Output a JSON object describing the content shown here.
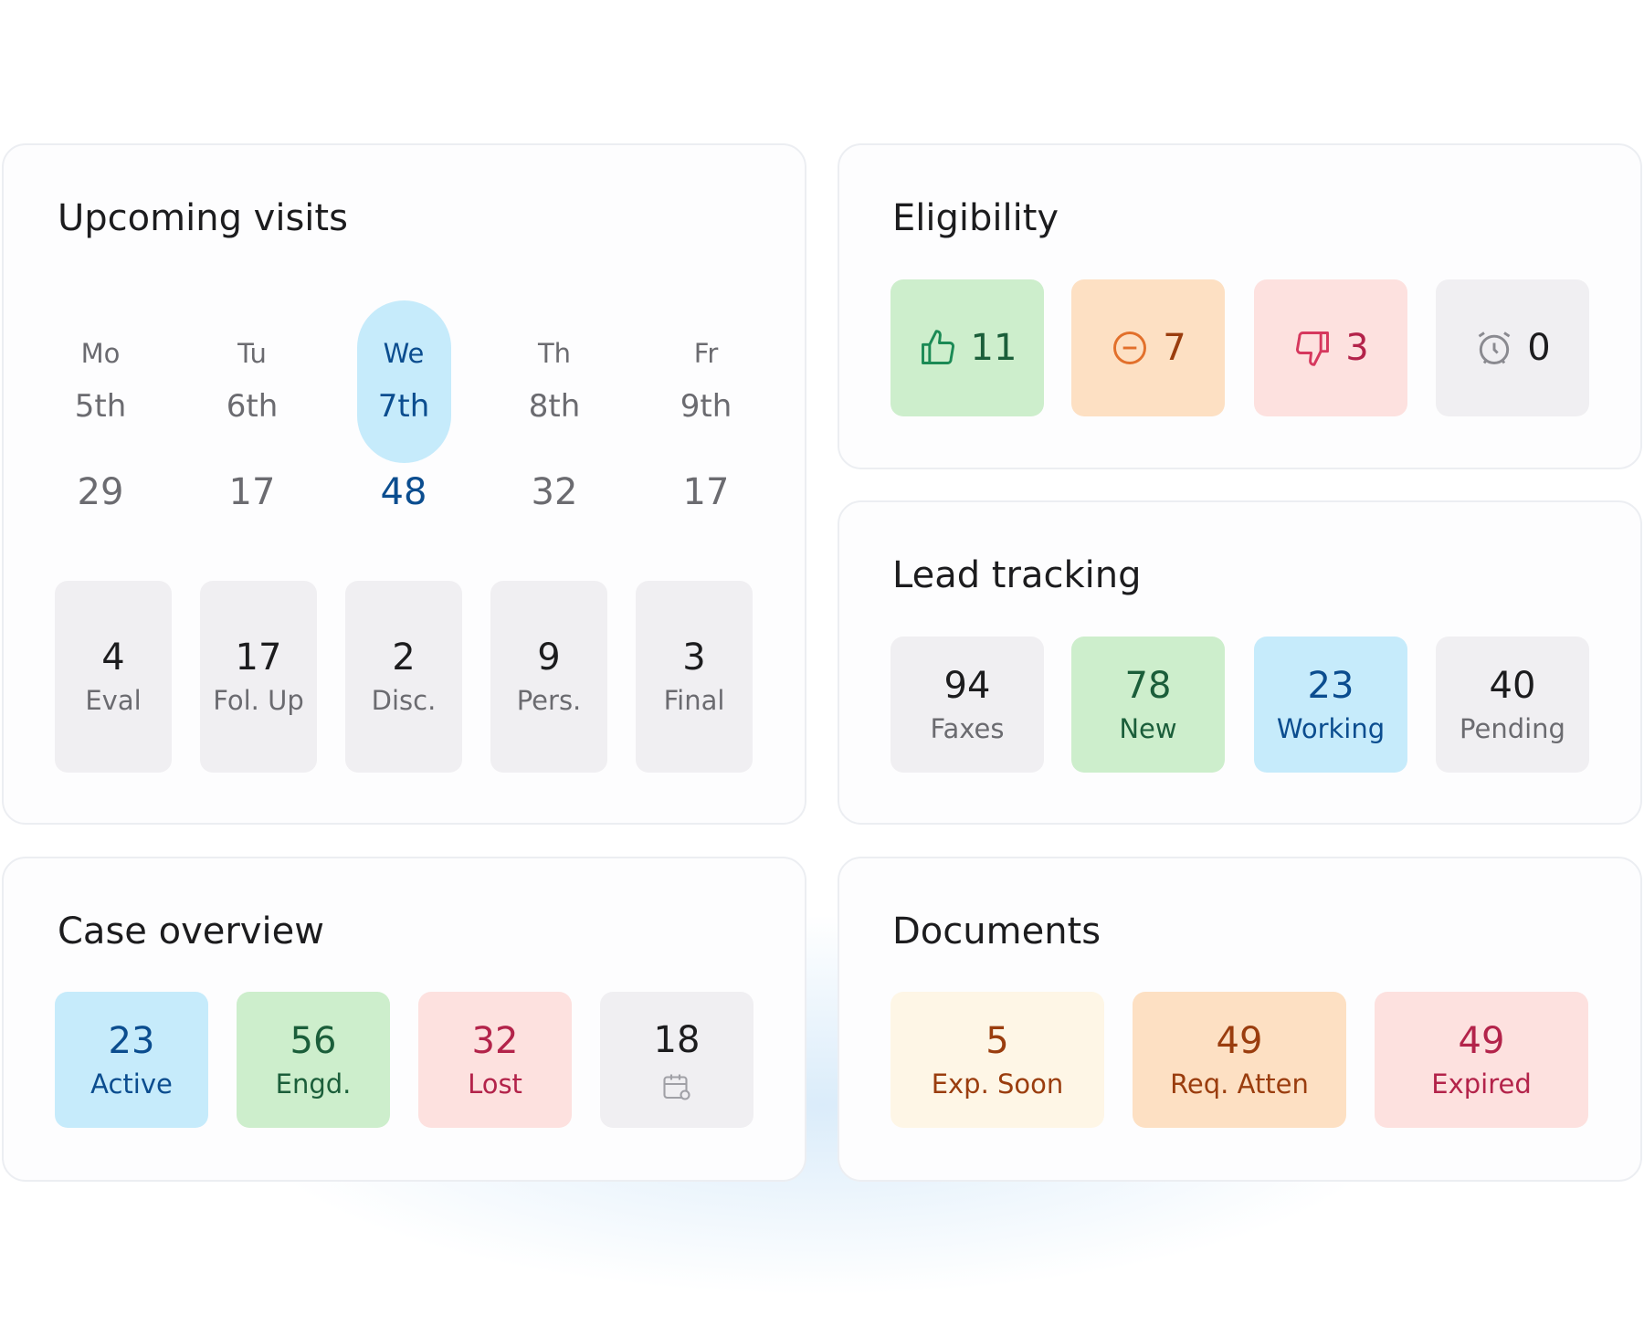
{
  "upcoming_visits": {
    "title": "Upcoming visits",
    "days": [
      {
        "day": "Mo",
        "date": "5th",
        "count": 29
      },
      {
        "day": "Tu",
        "date": "6th",
        "count": 17
      },
      {
        "day": "We",
        "date": "7th",
        "count": 48
      },
      {
        "day": "Th",
        "date": "8th",
        "count": 32
      },
      {
        "day": "Fr",
        "date": "9th",
        "count": 17
      }
    ],
    "types": [
      {
        "count": 4,
        "label": "Eval"
      },
      {
        "count": 17,
        "label": "Fol. Up"
      },
      {
        "count": 2,
        "label": "Disc."
      },
      {
        "count": 9,
        "label": "Pers."
      },
      {
        "count": 3,
        "label": "Final"
      }
    ]
  },
  "eligibility": {
    "title": "Eligibility",
    "items": [
      {
        "count": 11
      },
      {
        "count": 7
      },
      {
        "count": 3
      },
      {
        "count": 0
      }
    ]
  },
  "lead_tracking": {
    "title": "Lead tracking",
    "items": [
      {
        "count": 94,
        "label": "Faxes"
      },
      {
        "count": 78,
        "label": "New"
      },
      {
        "count": 23,
        "label": "Working"
      },
      {
        "count": 40,
        "label": "Pending"
      }
    ]
  },
  "case_overview": {
    "title": "Case overview",
    "items": [
      {
        "count": 23,
        "label": "Active"
      },
      {
        "count": 56,
        "label": "Engd."
      },
      {
        "count": 32,
        "label": "Lost"
      },
      {
        "count": 18
      }
    ]
  },
  "documents": {
    "title": "Documents",
    "items": [
      {
        "count": 5,
        "label": "Exp. Soon"
      },
      {
        "count": 49,
        "label": "Req. Atten"
      },
      {
        "count": 49,
        "label": "Expired"
      }
    ]
  }
}
